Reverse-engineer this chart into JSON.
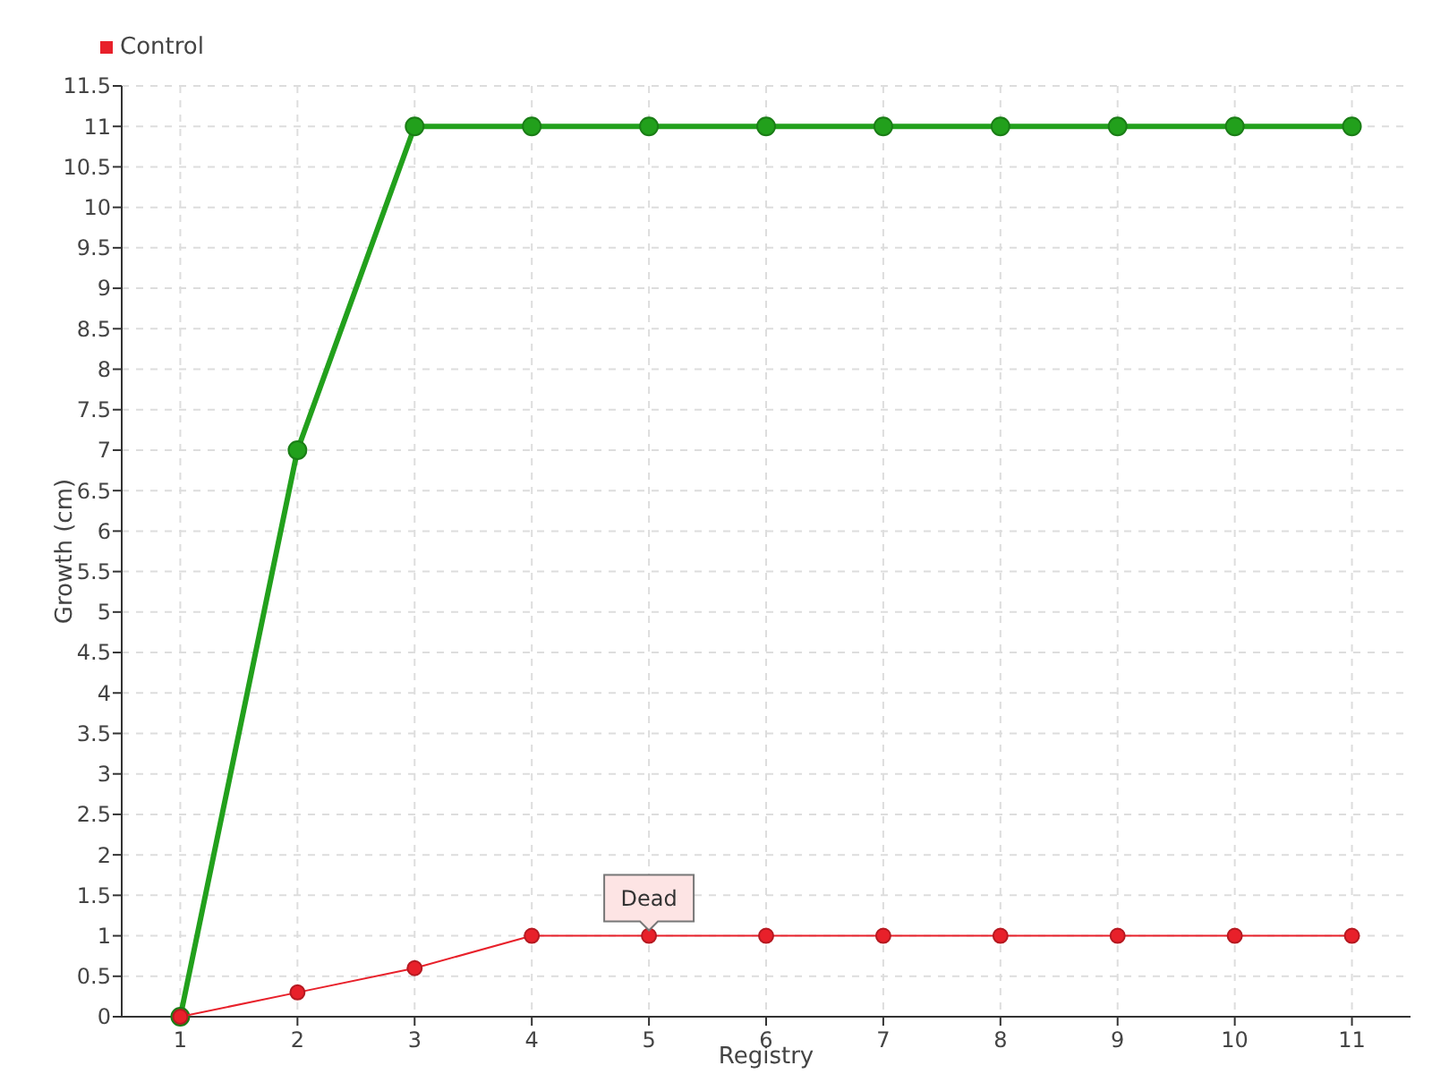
{
  "chart_data": {
    "type": "line",
    "xlabel": "Registry",
    "ylabel": "Growth (cm)",
    "categories": [
      "1",
      "2",
      "3",
      "4",
      "5",
      "6",
      "7",
      "8",
      "9",
      "10",
      "11"
    ],
    "series": [
      {
        "color": "#22a01c",
        "values": [
          0,
          7,
          11,
          11,
          11,
          11,
          11,
          11,
          11,
          11,
          11
        ]
      },
      {
        "name": "Control",
        "color": "#e8202a",
        "values": [
          0,
          0.3,
          0.6,
          1,
          1,
          1,
          1,
          1,
          1,
          1,
          1
        ]
      }
    ],
    "ylim": [
      0,
      11.5
    ],
    "yticks": [
      0,
      0.5,
      1,
      1.5,
      2,
      2.5,
      3,
      3.5,
      4,
      4.5,
      5,
      5.5,
      6,
      6.5,
      7,
      7.5,
      8,
      8.5,
      9,
      9.5,
      10,
      10.5,
      11,
      11.5
    ],
    "grid": true,
    "legend": "top left",
    "marker": "circle",
    "annotations": [
      {
        "text": "Dead",
        "x": "5",
        "y": 1
      }
    ]
  }
}
